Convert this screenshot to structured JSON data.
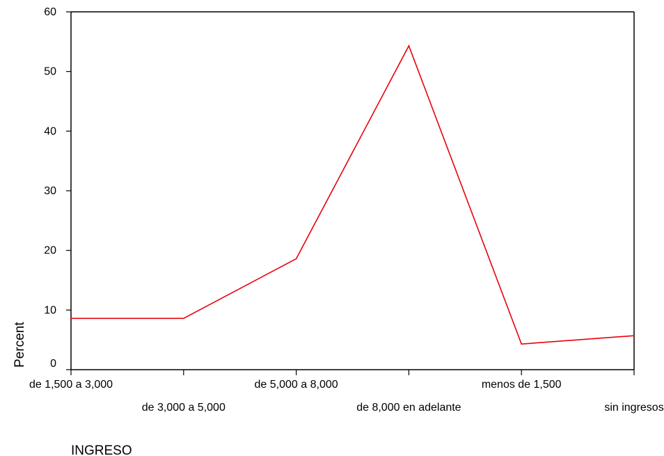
{
  "chart_data": {
    "type": "line",
    "title": "",
    "xlabel": "INGRESO",
    "ylabel": "Percent",
    "categories": [
      "de 1,500 a 3,000",
      "de 3,000 a 5,000",
      "de 5,000 a 8,000",
      "de 8,000 en adelante",
      "menos de 1,500",
      "sin ingresos"
    ],
    "series": [
      {
        "values": [
          8.6,
          8.6,
          18.6,
          54.3,
          4.3,
          5.7
        ],
        "color": "#e8000b"
      }
    ],
    "ylim": [
      0,
      60
    ],
    "yticks": [
      0,
      10,
      20,
      30,
      40,
      50,
      60
    ],
    "grid": false,
    "legend": "none"
  }
}
